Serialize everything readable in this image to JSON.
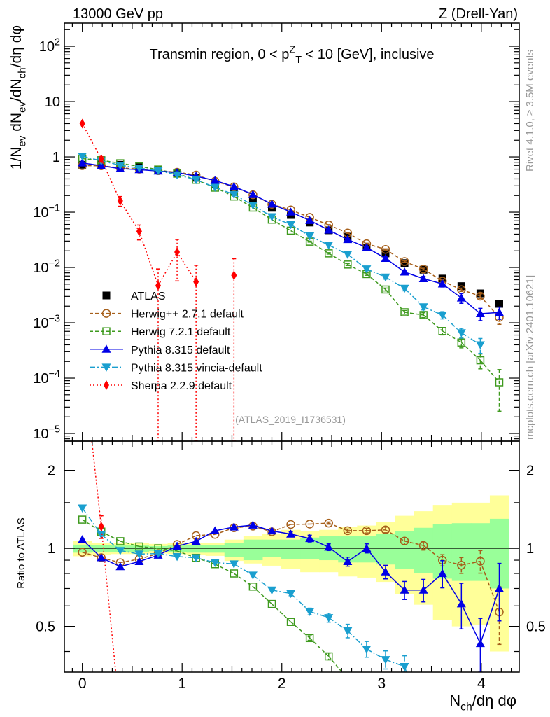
{
  "header": {
    "left": "13000 GeV pp",
    "right": "Z (Drell-Yan)"
  },
  "side_labels": {
    "rivet": "Rivet 4.1.0, ≥ 3.5M events",
    "mcplots": "mcplots.cern.ch [arXiv:2401.10621]"
  },
  "chart_data": {
    "type": "line",
    "title": "Transmin region, 0 < p^{Z}_{T} < 10 [GeV], inclusive",
    "watermark": "(ATLAS_2019_I1736531)",
    "xlabel": "N_{ch}/dη dφ",
    "ylabel": "1/N_{ev} dN_{ev}/dN_{ch}/dη dφ",
    "ratio_ylabel": "Ratio to ATLAS",
    "xlim": [
      -0.18,
      4.38
    ],
    "ylim": [
      7.26e-06,
      262
    ],
    "ylog": true,
    "ratio_ylim": [
      0.333,
      2.59
    ],
    "ratio_ylog": true,
    "grid": false,
    "legend_position": "lower-left",
    "x_ticks": [
      0,
      1,
      2,
      3,
      4
    ],
    "x_tick_labels": [
      "0",
      "1",
      "2",
      "3",
      "4"
    ],
    "y_ticks": [
      1e-05,
      0.0001,
      0.001,
      0.01,
      0.1,
      1,
      10,
      100
    ],
    "y_tick_labels": [
      "10^{−5}",
      "10^{−4}",
      "10^{−3}",
      "10^{−2}",
      "10^{−1}",
      "1",
      "10",
      "10^{2}"
    ],
    "ratio_ticks": [
      0.5,
      1,
      2
    ],
    "ratio_tick_labels": [
      "0.5",
      "1",
      "2"
    ],
    "x": [
      0,
      0.19,
      0.38,
      0.57,
      0.76,
      0.95,
      1.14,
      1.33,
      1.52,
      1.71,
      1.9,
      2.09,
      2.28,
      2.47,
      2.66,
      2.85,
      3.04,
      3.23,
      3.42,
      3.61,
      3.8,
      3.99,
      4.18
    ],
    "reference": {
      "name": "ATLAS",
      "color": "#000000",
      "values": [
        0.72,
        0.75,
        0.72,
        0.66,
        0.59,
        0.51,
        0.42,
        0.32,
        0.24,
        0.17,
        0.12,
        0.089,
        0.065,
        0.047,
        0.036,
        0.023,
        0.018,
        0.012,
        0.0091,
        0.0063,
        0.0046,
        0.0034,
        0.0022
      ],
      "band_total": {
        "color": "#ffff99",
        "hi": [
          1.066,
          1.05,
          1.045,
          1.045,
          1.04,
          1.045,
          1.05,
          1.049,
          1.08,
          1.112,
          1.138,
          1.178,
          1.166,
          1.178,
          1.21,
          1.224,
          1.26,
          1.335,
          1.39,
          1.47,
          1.5,
          1.5,
          1.6
        ],
        "lo": [
          0.932,
          0.94,
          0.95,
          0.95,
          0.955,
          0.95,
          0.94,
          0.935,
          0.894,
          0.874,
          0.857,
          0.833,
          0.809,
          0.809,
          0.779,
          0.771,
          0.742,
          0.667,
          0.606,
          0.53,
          0.5,
          0.505,
          0.4
        ]
      },
      "band_stat": {
        "color": "#99ff99",
        "hi": [
          1.033,
          1.03,
          1.025,
          1.025,
          1.02,
          1.025,
          1.03,
          1.029,
          1.049,
          1.08,
          1.08,
          1.08,
          1.1,
          1.112,
          1.112,
          1.112,
          1.133,
          1.166,
          1.2,
          1.236,
          1.25,
          1.25,
          1.3
        ],
        "lo": [
          0.962,
          0.965,
          0.97,
          0.97,
          0.975,
          0.97,
          0.962,
          0.962,
          0.926,
          0.9,
          0.926,
          0.908,
          0.908,
          0.9,
          0.882,
          0.882,
          0.866,
          0.833,
          0.8,
          0.764,
          0.749,
          0.749,
          0.7
        ]
      }
    },
    "series": [
      {
        "name": "Herwig++ 2.7.1 default",
        "color": "#a65f1a",
        "marker": "open-circle",
        "dash": "5,3",
        "values": [
          0.695,
          0.69,
          0.634,
          0.6,
          0.563,
          0.528,
          0.47,
          0.362,
          0.288,
          0.207,
          0.139,
          0.11,
          0.0806,
          0.0588,
          0.0421,
          0.0269,
          0.0212,
          0.0128,
          0.00933,
          0.00567,
          0.00396,
          0.00303,
          0.00125
        ],
        "err": [
          0,
          0,
          0,
          0,
          0,
          0,
          0,
          0,
          0,
          0,
          0,
          0,
          0,
          0.01,
          0.015,
          0.02,
          0.025,
          0.03,
          0.04,
          0.05,
          0.07,
          0.1,
          0.25
        ]
      },
      {
        "name": "Herwig 7.2.1 default",
        "color": "#3e9a1e",
        "marker": "open-square",
        "dash": "5,3",
        "values": [
          0.929,
          0.87,
          0.767,
          0.671,
          0.59,
          0.498,
          0.386,
          0.278,
          0.192,
          0.121,
          0.0732,
          0.0463,
          0.0293,
          0.018,
          0.0113,
          0.0076,
          0.004,
          0.00155,
          0.00138,
          0.00071,
          0.00044,
          0.00021,
          8.4e-05
        ],
        "err": [
          0,
          0,
          0,
          0,
          0,
          0,
          0,
          0,
          0,
          0,
          0,
          0,
          0.02,
          0.03,
          0.04,
          0.05,
          0.06,
          0.08,
          0.1,
          0.15,
          0.2,
          0.3,
          0.7
        ]
      },
      {
        "name": "Pythia 8.315 default",
        "color": "#0000e6",
        "marker": "triangle-up",
        "dash": "",
        "values": [
          0.778,
          0.69,
          0.612,
          0.587,
          0.555,
          0.52,
          0.447,
          0.374,
          0.29,
          0.209,
          0.14,
          0.101,
          0.0709,
          0.0475,
          0.032,
          0.023,
          0.0146,
          0.00828,
          0.00628,
          0.00504,
          0.00281,
          0.00146,
          0.00154
        ],
        "err": [
          0,
          0,
          0,
          0,
          0,
          0,
          0,
          0,
          0,
          0,
          0,
          0.02,
          0.03,
          0.03,
          0.04,
          0.04,
          0.06,
          0.08,
          0.1,
          0.12,
          0.2,
          0.25,
          0.25
        ]
      },
      {
        "name": "Pythia 8.315 vincia-default",
        "color": "#1a9fcf",
        "marker": "triangle-down",
        "dash": "8,3,2,3",
        "values": [
          1.03,
          0.848,
          0.706,
          0.627,
          0.563,
          0.474,
          0.386,
          0.282,
          0.209,
          0.134,
          0.0828,
          0.0596,
          0.0371,
          0.0254,
          0.0173,
          0.0094,
          0.0067,
          0.0042,
          0.00194,
          0.00138,
          0.00066,
          0.0004,
          null
        ],
        "err": [
          0,
          0,
          0,
          0,
          0,
          0,
          0,
          0,
          0,
          0,
          0,
          0.02,
          0.03,
          0.04,
          0.06,
          0.07,
          0.08,
          0.1,
          0.12,
          0.15,
          0.2,
          0.3,
          null
        ]
      },
      {
        "name": "Sherpa 2.2.9 default",
        "color": "#ff0000",
        "marker": "diamond",
        "dash": "2,3",
        "values": [
          4.0,
          0.91,
          0.16,
          0.045,
          0.0047,
          0.019,
          0.0055,
          null,
          0.0072,
          null,
          null,
          null,
          null,
          null,
          null,
          null,
          null,
          null,
          null,
          null,
          null,
          null,
          null
        ],
        "err": [
          0.05,
          0.1,
          0.2,
          0.3,
          1.0,
          0.7,
          1.0,
          null,
          1.0,
          null,
          null,
          null,
          null,
          null,
          null,
          null,
          null,
          null,
          null,
          null,
          null,
          null,
          null
        ]
      }
    ]
  }
}
